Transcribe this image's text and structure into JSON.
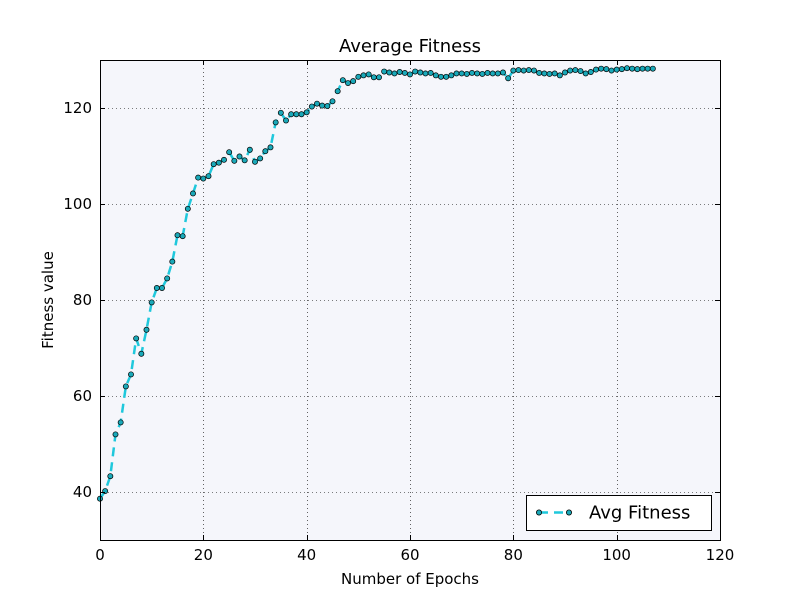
{
  "chart_data": {
    "type": "line",
    "title": "Average Fitness",
    "xlabel": "Number of Epochs",
    "ylabel": "Fitness value",
    "xlim": [
      0,
      120
    ],
    "ylim": [
      30,
      130
    ],
    "xticks": [
      0,
      20,
      40,
      60,
      80,
      100,
      120
    ],
    "yticks": [
      40,
      60,
      80,
      100,
      120
    ],
    "grid": true,
    "legend_position": "bottom-right",
    "background_color": "#f5f6fb",
    "series": [
      {
        "name": "Avg Fitness",
        "color": "#1fc8dc",
        "marker_color": "#1aa9b9",
        "line_style": "dashed",
        "x": [
          0,
          1,
          2,
          3,
          4,
          5,
          6,
          7,
          8,
          9,
          10,
          11,
          12,
          13,
          14,
          15,
          16,
          17,
          18,
          19,
          20,
          21,
          22,
          23,
          24,
          25,
          26,
          27,
          28,
          29,
          30,
          31,
          32,
          33,
          34,
          35,
          36,
          37,
          38,
          39,
          40,
          41,
          42,
          43,
          44,
          45,
          46,
          47,
          48,
          49,
          50,
          51,
          52,
          53,
          54,
          55,
          56,
          57,
          58,
          59,
          60,
          61,
          62,
          63,
          64,
          65,
          66,
          67,
          68,
          69,
          70,
          71,
          72,
          73,
          74,
          75,
          76,
          77,
          78,
          79,
          80,
          81,
          82,
          83,
          84,
          85,
          86,
          87,
          88,
          89,
          90,
          91,
          92,
          93,
          94,
          95,
          96,
          97,
          98,
          99,
          100,
          101,
          102,
          103,
          104,
          105,
          106,
          107
        ],
        "y": [
          38.6,
          40.2,
          43.3,
          52,
          54.5,
          62,
          64.5,
          72,
          68.8,
          73.8,
          79.5,
          82.5,
          82.5,
          84.5,
          88,
          93.5,
          93.3,
          99,
          102.2,
          105.5,
          105.3,
          105.8,
          108.3,
          108.6,
          109.2,
          110.8,
          109,
          109.9,
          109.1,
          111.3,
          108.8,
          109.5,
          111,
          111.8,
          117,
          119,
          117.4,
          118.7,
          118.7,
          118.7,
          119.1,
          120.3,
          120.9,
          120.5,
          120.4,
          121.4,
          123.5,
          125.8,
          125.2,
          125.6,
          126.5,
          126.8,
          127,
          126.4,
          126.4,
          127.6,
          127.4,
          127.2,
          127.5,
          127.3,
          127,
          127.6,
          127.4,
          127.2,
          127.3,
          126.8,
          126.5,
          126.5,
          126.8,
          127.2,
          127.2,
          127.1,
          127.3,
          127.2,
          127.1,
          127.3,
          127.2,
          127.2,
          127.4,
          126.2,
          127.8,
          127.9,
          127.8,
          127.9,
          127.8,
          127.3,
          127.2,
          127.1,
          127.2,
          126.8,
          127.4,
          127.8,
          127.9,
          127.7,
          127.2,
          127.5,
          128,
          128.2,
          128.1,
          127.8,
          128,
          128.1,
          128.3,
          128.2,
          128.1,
          128.2,
          128.2,
          128.2
        ]
      }
    ]
  }
}
